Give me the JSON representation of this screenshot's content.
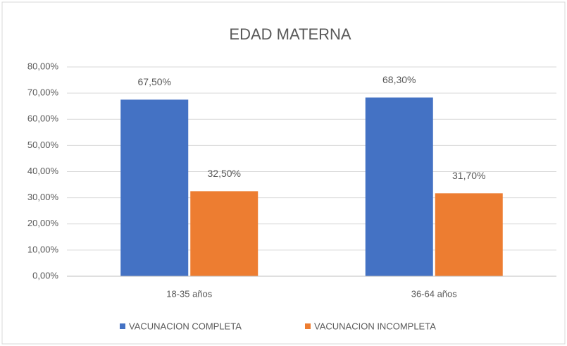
{
  "chart_data": {
    "type": "bar",
    "title": "EDAD MATERNA",
    "categories": [
      "18-35 años",
      "36-64 años"
    ],
    "series": [
      {
        "name": "VACUNACION COMPLETA",
        "color": "#4472c4",
        "values": [
          67.5,
          68.3
        ],
        "value_labels": [
          "67,50%",
          "68,30%"
        ]
      },
      {
        "name": "VACUNACION INCOMPLETA",
        "color": "#ed7d31",
        "values": [
          32.5,
          31.7
        ],
        "value_labels": [
          "32,50%",
          "31,70%"
        ]
      }
    ],
    "ylim": [
      0,
      80
    ],
    "yticks": [
      {
        "value": 0,
        "label": "0,00%"
      },
      {
        "value": 10,
        "label": "10,00%"
      },
      {
        "value": 20,
        "label": "20,00%"
      },
      {
        "value": 30,
        "label": "30,00%"
      },
      {
        "value": 40,
        "label": "40,00%"
      },
      {
        "value": 50,
        "label": "50,00%"
      },
      {
        "value": 60,
        "label": "60,00%"
      },
      {
        "value": 70,
        "label": "70,00%"
      },
      {
        "value": 80,
        "label": "80,00%"
      }
    ],
    "grid": true,
    "legend": "bottom"
  }
}
